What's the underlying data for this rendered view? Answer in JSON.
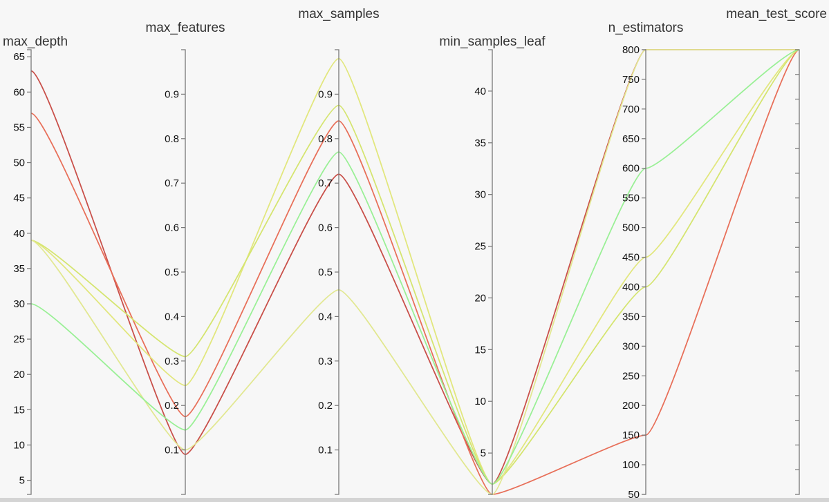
{
  "chart_data": {
    "type": "parallel_coordinates",
    "axes": [
      {
        "name": "max_depth",
        "range": [
          3,
          66
        ],
        "ticks": [
          5,
          10,
          15,
          20,
          25,
          30,
          35,
          40,
          45,
          50,
          55,
          60,
          65
        ]
      },
      {
        "name": "max_features",
        "range": [
          0.0,
          1.0
        ],
        "ticks": [
          0.1,
          0.2,
          0.3,
          0.4,
          0.5,
          0.6,
          0.7,
          0.8,
          0.9
        ]
      },
      {
        "name": "max_samples",
        "range": [
          0.0,
          1.0
        ],
        "ticks": [
          0.1,
          0.2,
          0.3,
          0.4,
          0.5,
          0.6,
          0.7,
          0.8,
          0.9
        ]
      },
      {
        "name": "min_samples_leaf",
        "range": [
          1,
          44
        ],
        "ticks": [
          5,
          10,
          15,
          20,
          25,
          30,
          35,
          40
        ]
      },
      {
        "name": "n_estimators",
        "range": [
          50,
          800
        ],
        "ticks": [
          50,
          100,
          150,
          200,
          250,
          300,
          350,
          400,
          450,
          500,
          550,
          600,
          650,
          700,
          750,
          800
        ]
      },
      {
        "name": "mean_test_score",
        "range": [
          0,
          1
        ],
        "ticks": [],
        "minor_ticks": 18
      }
    ],
    "series": [
      {
        "color": "#c9504a",
        "values": [
          63,
          0.09,
          0.72,
          2,
          800,
          1.0
        ]
      },
      {
        "color": "#e8705a",
        "values": [
          57,
          0.175,
          0.84,
          1,
          150,
          1.0
        ]
      },
      {
        "color": "#e2e77e",
        "values": [
          39,
          0.245,
          0.98,
          2,
          450,
          1.0
        ]
      },
      {
        "color": "#d5e570",
        "values": [
          39,
          0.31,
          0.875,
          2,
          400,
          1.0
        ]
      },
      {
        "color": "#e2e892",
        "values": [
          39,
          0.1,
          0.46,
          1,
          800,
          1.0
        ]
      },
      {
        "color": "#9af096",
        "values": [
          30,
          0.145,
          0.77,
          2,
          600,
          1.0
        ]
      }
    ]
  }
}
